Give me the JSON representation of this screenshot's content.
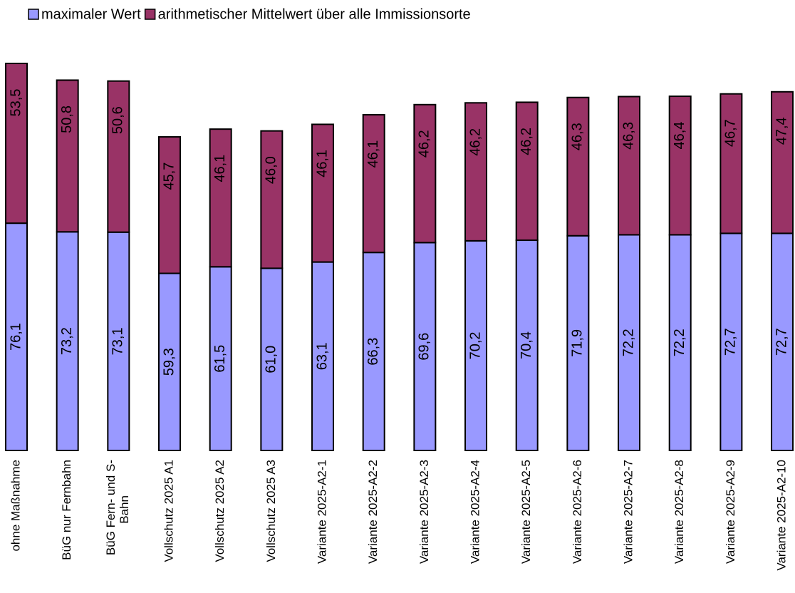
{
  "chart_data": {
    "type": "stacked_bar",
    "categories": [
      "ohne Maßnahme",
      "BüG nur Fernbahn",
      "BüG Fern- und S-\nBahn",
      "Vollschutz 2025 A1",
      "Vollschutz 2025 A2",
      "Vollschutz 2025 A3",
      "Variante 2025-A2-1",
      "Variante 2025-A2-2",
      "Variante 2025-A2-3",
      "Variante 2025-A2-4",
      "Variante 2025-A2-5",
      "Variante 2025-A2-6",
      "Variante 2025-A2-7",
      "Variante 2025-A2-8",
      "Variante 2025-A2-9",
      "Variante 2025-A2-10"
    ],
    "series": [
      {
        "name": "maximaler Wert",
        "color": "#9999ff",
        "values": [
          76.1,
          73.2,
          73.1,
          59.3,
          61.5,
          61.0,
          63.1,
          66.3,
          69.6,
          70.2,
          70.4,
          71.9,
          72.2,
          72.2,
          72.7,
          72.7
        ],
        "value_labels": [
          "76,1",
          "73,2",
          "73,1",
          "59,3",
          "61,5",
          "61,0",
          "63,1",
          "66,3",
          "69,6",
          "70,2",
          "70,4",
          "71,9",
          "72,2",
          "72,2",
          "72,7",
          "72,7"
        ]
      },
      {
        "name": "arithmetischer Mittelwert über alle Immissionsorte",
        "color": "#993366",
        "values": [
          53.5,
          50.8,
          50.6,
          45.7,
          46.1,
          46.0,
          46.1,
          46.1,
          46.2,
          46.2,
          46.2,
          46.3,
          46.3,
          46.4,
          46.7,
          47.4
        ],
        "value_labels": [
          "53,5",
          "50,8",
          "50,6",
          "45,7",
          "46,1",
          "46,0",
          "46,1",
          "46,1",
          "46,2",
          "46,2",
          "46,2",
          "46,3",
          "46,3",
          "46,4",
          "46,7",
          "47,4"
        ]
      }
    ],
    "legend": "top-left"
  }
}
